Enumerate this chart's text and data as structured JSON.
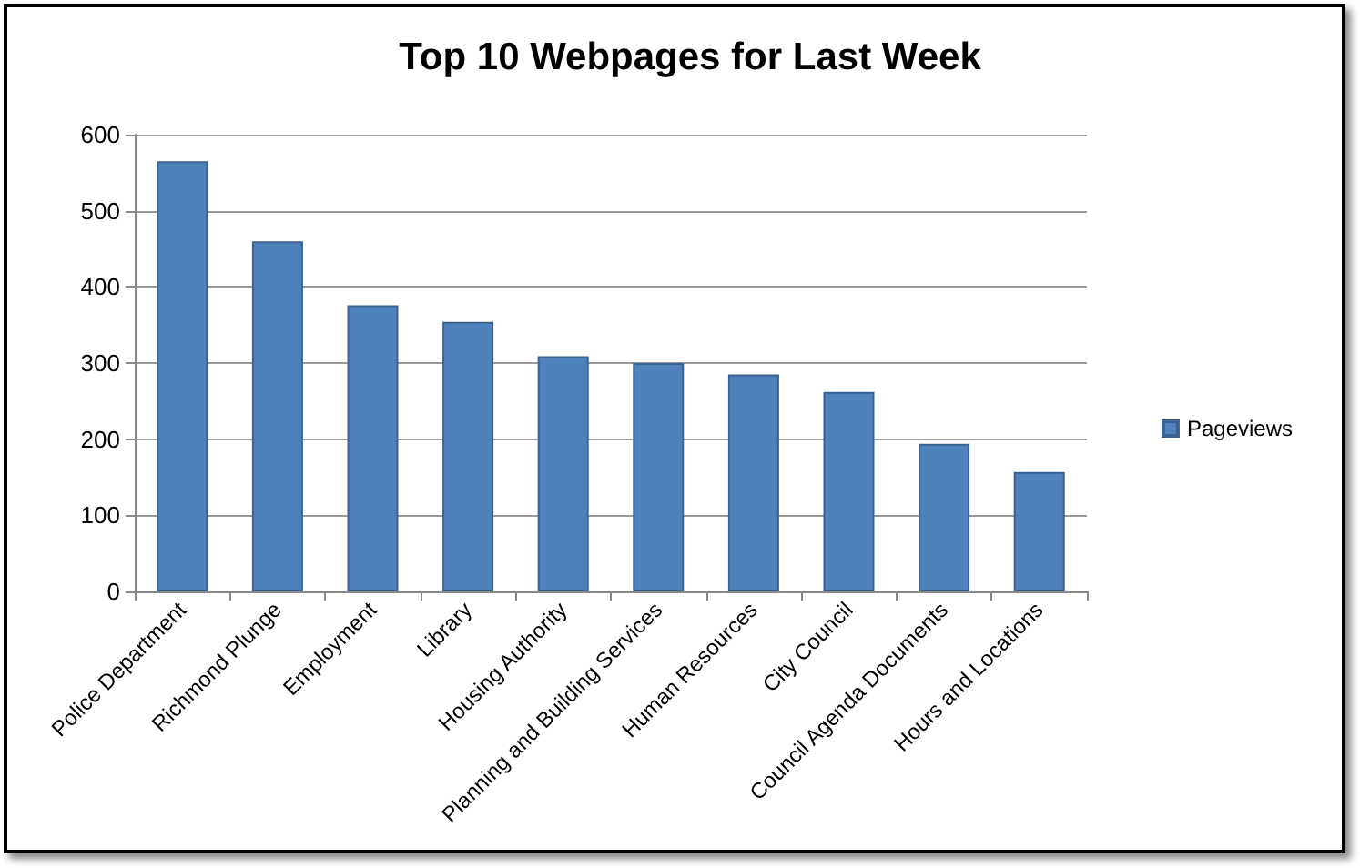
{
  "chart_data": {
    "type": "bar",
    "title": "Top 10 Webpages for Last Week",
    "categories": [
      "Police Department",
      "Richmond Plunge",
      "Employment",
      "Library",
      "Housing Authority",
      "Planning and Building Services",
      "Human Resources",
      "City Council",
      "Council Agenda Documents",
      "Hours and Locations"
    ],
    "series": [
      {
        "name": "Pageviews",
        "color": "#4f81bd",
        "values": [
          565,
          460,
          376,
          354,
          309,
          300,
          285,
          262,
          194,
          157
        ]
      }
    ],
    "ylim": [
      0,
      600
    ],
    "yticks": [
      0,
      100,
      200,
      300,
      400,
      500,
      600
    ],
    "grid": "y",
    "legend": "right"
  }
}
